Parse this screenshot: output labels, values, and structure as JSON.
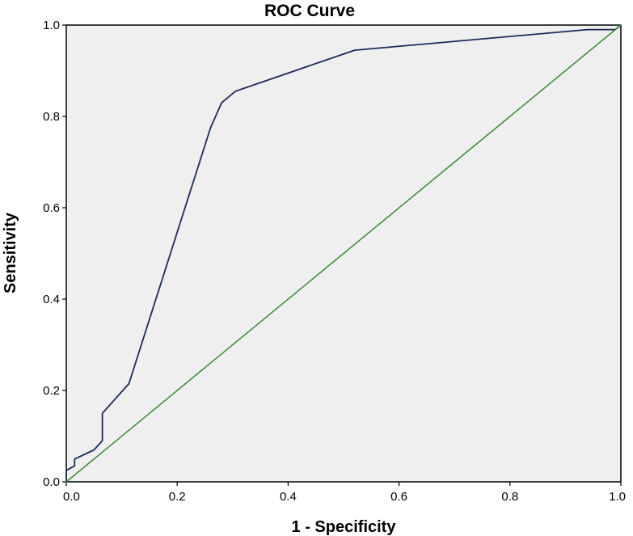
{
  "chart_data": {
    "type": "line",
    "title": "ROC Curve",
    "xlabel": "1 - Specificity",
    "ylabel": "Sensitivity",
    "xlim": [
      0,
      1
    ],
    "ylim": [
      0,
      1
    ],
    "xticks": [
      "0.0",
      "0.2",
      "0.4",
      "0.6",
      "0.8",
      "1.0"
    ],
    "yticks": [
      "0.0",
      "0.2",
      "0.4",
      "0.6",
      "0.8",
      "1.0"
    ],
    "grid": false,
    "series": [
      {
        "color": "#1f2a5c",
        "x": [
          0.0,
          0.0,
          0.015,
          0.015,
          0.05,
          0.065,
          0.065,
          0.113,
          0.26,
          0.28,
          0.305,
          0.52,
          0.94,
          0.99,
          1.0
        ],
        "y": [
          0.0,
          0.025,
          0.035,
          0.05,
          0.07,
          0.09,
          0.15,
          0.215,
          0.775,
          0.83,
          0.855,
          0.945,
          0.99,
          0.99,
          1.0
        ]
      },
      {
        "color": "#3a8a34",
        "x": [
          0.0,
          1.0
        ],
        "y": [
          0.0,
          1.0
        ]
      }
    ]
  }
}
